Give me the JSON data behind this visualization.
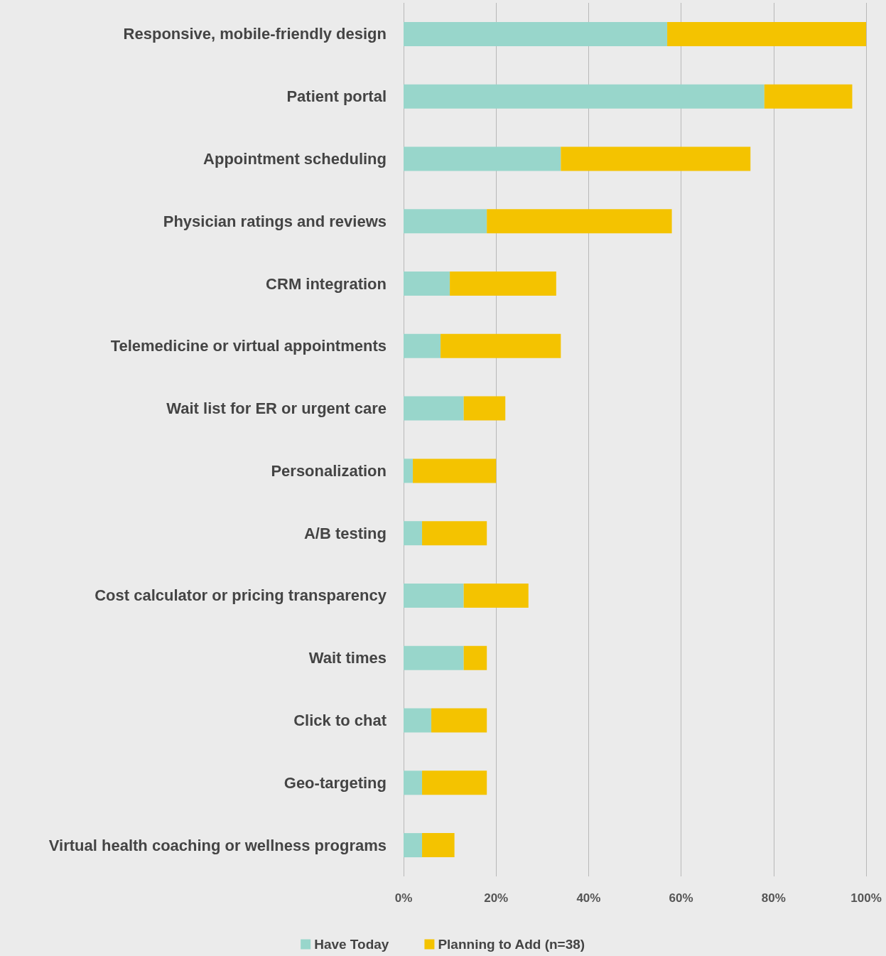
{
  "chart_data": {
    "type": "bar",
    "orientation": "horizontal",
    "stacked": true,
    "categories": [
      "Responsive, mobile-friendly design",
      "Patient portal",
      "Appointment scheduling",
      "Physician ratings and reviews",
      "CRM integration",
      "Telemedicine or virtual appointments",
      "Wait list for ER or urgent care",
      "Personalization",
      "A/B testing",
      "Cost calculator or pricing transparency",
      "Wait times",
      "Click to chat",
      "Geo-targeting",
      "Virtual health coaching or wellness programs"
    ],
    "series": [
      {
        "name": "Have Today",
        "color": "#98d6cb",
        "values": [
          57,
          78,
          34,
          18,
          10,
          8,
          13,
          2,
          4,
          13,
          13,
          6,
          4,
          4
        ]
      },
      {
        "name": "Planning to Add (n=38)",
        "color": "#f4c300",
        "values": [
          43,
          19,
          41,
          40,
          23,
          26,
          9,
          18,
          14,
          14,
          5,
          12,
          14,
          7
        ]
      }
    ],
    "xlim": [
      0,
      100
    ],
    "xticks": [
      {
        "value": 0,
        "label": "0%"
      },
      {
        "value": 20,
        "label": "20%"
      },
      {
        "value": 40,
        "label": "40%"
      },
      {
        "value": 60,
        "label": "60%"
      },
      {
        "value": 80,
        "label": "80%"
      },
      {
        "value": 100,
        "label": "100%"
      }
    ],
    "grid": "x",
    "legend": "bottom"
  }
}
